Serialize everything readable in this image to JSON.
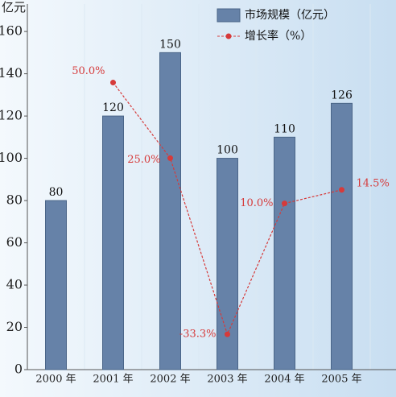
{
  "chart_data": {
    "type": "bar",
    "y_axis_label": "亿元",
    "categories": [
      "2000 年",
      "2001 年",
      "2002 年",
      "2003 年",
      "2004 年",
      "2005 年"
    ],
    "series": [
      {
        "name": "市场规模（亿元）",
        "type": "bar",
        "color": "#6682a8",
        "values": [
          80,
          120,
          150,
          100,
          110,
          126
        ]
      },
      {
        "name": "增长率（%）",
        "type": "line",
        "axis": "y2",
        "color": "#d63a3a",
        "values": [
          null,
          50,
          25,
          -33.3,
          10,
          14.5
        ],
        "value_labels": [
          null,
          "50.0%",
          "25.0%",
          "-33.3%",
          "10.0%",
          "14.5%"
        ]
      }
    ],
    "ylim": [
      0,
      173
    ],
    "yticks": [
      0,
      20,
      40,
      60,
      80,
      100,
      120,
      140,
      160
    ],
    "y2lim": [
      -45,
      76
    ],
    "legend": "upper right"
  }
}
